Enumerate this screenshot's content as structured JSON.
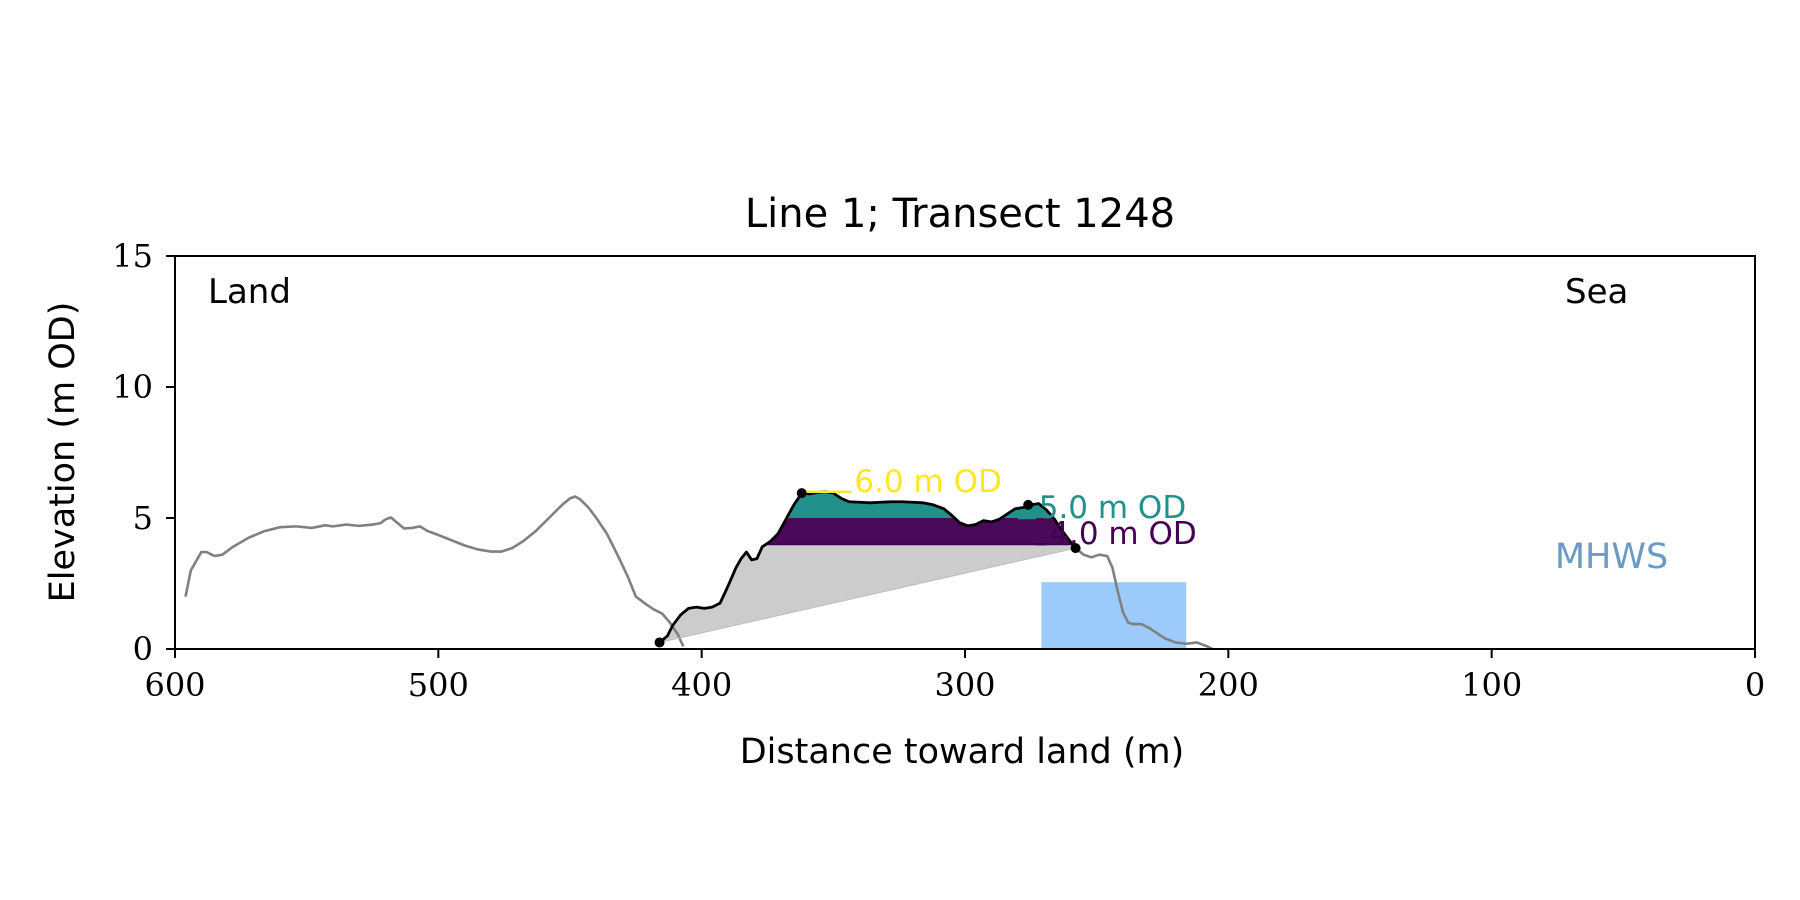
{
  "chart_data": {
    "type": "line",
    "title": "Line 1; Transect 1248",
    "xlabel": "Distance toward land (m)",
    "ylabel": "Elevation (m OD)",
    "xlim": [
      600,
      0
    ],
    "ylim": [
      0,
      15
    ],
    "x_ticks": [
      {
        "value": 600,
        "label": "600"
      },
      {
        "value": 500,
        "label": "500"
      },
      {
        "value": 400,
        "label": "400"
      },
      {
        "value": 300,
        "label": "300"
      },
      {
        "value": 200,
        "label": "200"
      },
      {
        "value": 100,
        "label": "100"
      },
      {
        "value": 0,
        "label": "0"
      }
    ],
    "y_ticks": [
      {
        "value": 0,
        "label": "0"
      },
      {
        "value": 5,
        "label": "5"
      },
      {
        "value": 10,
        "label": "10"
      },
      {
        "value": 15,
        "label": "15"
      }
    ],
    "grid": false,
    "annotations": {
      "land": "Land",
      "sea": "Sea",
      "mhws": "MHWS"
    },
    "colors": {
      "profile_gray": "#808080",
      "profile_black": "#000000",
      "fill_4m": "#440154",
      "fill_5m": "#21918c",
      "fill_6m": "#fde725",
      "base_fill": "#cccccc",
      "mhws_fill": "#9ccbfb",
      "mhws_text": "#6a9bc8"
    },
    "series": [
      {
        "role": "profile_landward",
        "color": "#808080",
        "points": [
          [
            596,
            2.0
          ],
          [
            594,
            3.0
          ],
          [
            590,
            3.7
          ],
          [
            588,
            3.7
          ],
          [
            585,
            3.55
          ],
          [
            582,
            3.6
          ],
          [
            578,
            3.9
          ],
          [
            572,
            4.25
          ],
          [
            566,
            4.5
          ],
          [
            560,
            4.65
          ],
          [
            554,
            4.68
          ],
          [
            548,
            4.62
          ],
          [
            543,
            4.72
          ],
          [
            540,
            4.68
          ],
          [
            535,
            4.75
          ],
          [
            530,
            4.7
          ],
          [
            525,
            4.75
          ],
          [
            522,
            4.8
          ],
          [
            520,
            4.95
          ],
          [
            518,
            5.02
          ],
          [
            516,
            4.85
          ],
          [
            513,
            4.6
          ],
          [
            510,
            4.62
          ],
          [
            507,
            4.68
          ],
          [
            504,
            4.5
          ],
          [
            500,
            4.35
          ],
          [
            495,
            4.15
          ],
          [
            490,
            3.95
          ],
          [
            485,
            3.8
          ],
          [
            480,
            3.72
          ],
          [
            476,
            3.72
          ],
          [
            472,
            3.85
          ],
          [
            468,
            4.1
          ],
          [
            463,
            4.5
          ],
          [
            458,
            5.0
          ],
          [
            453,
            5.5
          ],
          [
            450,
            5.75
          ],
          [
            448,
            5.82
          ],
          [
            446,
            5.7
          ],
          [
            443,
            5.4
          ],
          [
            440,
            5.0
          ],
          [
            436,
            4.4
          ],
          [
            432,
            3.6
          ],
          [
            428,
            2.75
          ],
          [
            425,
            2.0
          ],
          [
            421,
            1.7
          ],
          [
            418,
            1.5
          ],
          [
            415,
            1.35
          ],
          [
            412,
            1.0
          ],
          [
            409,
            0.55
          ],
          [
            407,
            0.1
          ]
        ]
      },
      {
        "role": "profile_dune",
        "color": "#000000",
        "points": [
          [
            416,
            0.25
          ],
          [
            413,
            0.5
          ],
          [
            411,
            0.9
          ],
          [
            408,
            1.3
          ],
          [
            405,
            1.55
          ],
          [
            402,
            1.6
          ],
          [
            399,
            1.55
          ],
          [
            396,
            1.6
          ],
          [
            393,
            1.75
          ],
          [
            390,
            2.4
          ],
          [
            387,
            3.1
          ],
          [
            385,
            3.45
          ],
          [
            383,
            3.7
          ],
          [
            381,
            3.4
          ],
          [
            379,
            3.45
          ],
          [
            377,
            3.9
          ],
          [
            374,
            4.1
          ],
          [
            371,
            4.4
          ],
          [
            368,
            4.95
          ],
          [
            365,
            5.5
          ],
          [
            362,
            5.95
          ],
          [
            359,
            5.92
          ],
          [
            356,
            5.98
          ],
          [
            353,
            6.0
          ],
          [
            350,
            5.95
          ],
          [
            347,
            5.75
          ],
          [
            344,
            5.62
          ],
          [
            340,
            5.6
          ],
          [
            336,
            5.58
          ],
          [
            332,
            5.6
          ],
          [
            328,
            5.62
          ],
          [
            324,
            5.62
          ],
          [
            320,
            5.6
          ],
          [
            316,
            5.58
          ],
          [
            312,
            5.5
          ],
          [
            308,
            5.35
          ],
          [
            305,
            5.1
          ],
          [
            302,
            4.82
          ],
          [
            299,
            4.7
          ],
          [
            296,
            4.75
          ],
          [
            293,
            4.9
          ],
          [
            290,
            4.85
          ],
          [
            287,
            4.95
          ],
          [
            284,
            5.15
          ],
          [
            281,
            5.35
          ],
          [
            278,
            5.4
          ],
          [
            275,
            5.5
          ],
          [
            272,
            5.55
          ],
          [
            269,
            5.3
          ],
          [
            266,
            4.95
          ],
          [
            263,
            4.5
          ],
          [
            260,
            4.1
          ],
          [
            258,
            3.85
          ]
        ]
      },
      {
        "role": "profile_seaward",
        "color": "#808080",
        "points": [
          [
            258,
            3.85
          ],
          [
            255,
            3.6
          ],
          [
            252,
            3.5
          ],
          [
            249,
            3.6
          ],
          [
            246,
            3.55
          ],
          [
            244,
            3.1
          ],
          [
            242,
            2.2
          ],
          [
            240,
            1.4
          ],
          [
            238,
            1.0
          ],
          [
            236,
            0.95
          ],
          [
            233,
            0.95
          ],
          [
            230,
            0.8
          ],
          [
            227,
            0.6
          ],
          [
            224,
            0.4
          ],
          [
            220,
            0.25
          ],
          [
            216,
            0.2
          ],
          [
            212,
            0.25
          ],
          [
            208,
            0.1
          ],
          [
            206,
            0.0
          ]
        ]
      }
    ],
    "fill_levels": [
      {
        "level": 4.0,
        "label": "4.0 m OD",
        "color": "#440154"
      },
      {
        "level": 5.0,
        "label": "5.0 m OD",
        "color": "#21918c"
      },
      {
        "level": 6.0,
        "label": "6.0 m OD",
        "color": "#fde725"
      }
    ],
    "level_lines": [
      {
        "level": 4.0,
        "from_x": 273,
        "to_x": 269,
        "label_x": 268
      },
      {
        "level": 5.0,
        "from_x": 280,
        "to_x": 273,
        "label_x": 272
      },
      {
        "level": 6.0,
        "from_x": 361,
        "to_x": 343,
        "label_x": 342
      }
    ],
    "level_ticks": [
      {
        "value": 4.0,
        "label": "4.0 m OD"
      },
      {
        "value": 5.0,
        "label": "5.0 m OD"
      },
      {
        "value": 6.0,
        "label": "6.0 m OD"
      }
    ],
    "base_polygon": [
      [
        416,
        0.25
      ],
      [
        258,
        3.85
      ]
    ],
    "marker_points": [
      {
        "x": 416,
        "y": 0.25
      },
      {
        "x": 362,
        "y": 5.95
      },
      {
        "x": 276,
        "y": 5.5
      },
      {
        "x": 258,
        "y": 3.85
      }
    ],
    "mhws_box": {
      "x_from": 271,
      "x_to": 216,
      "y_from": 0,
      "y_to": 2.55
    }
  }
}
